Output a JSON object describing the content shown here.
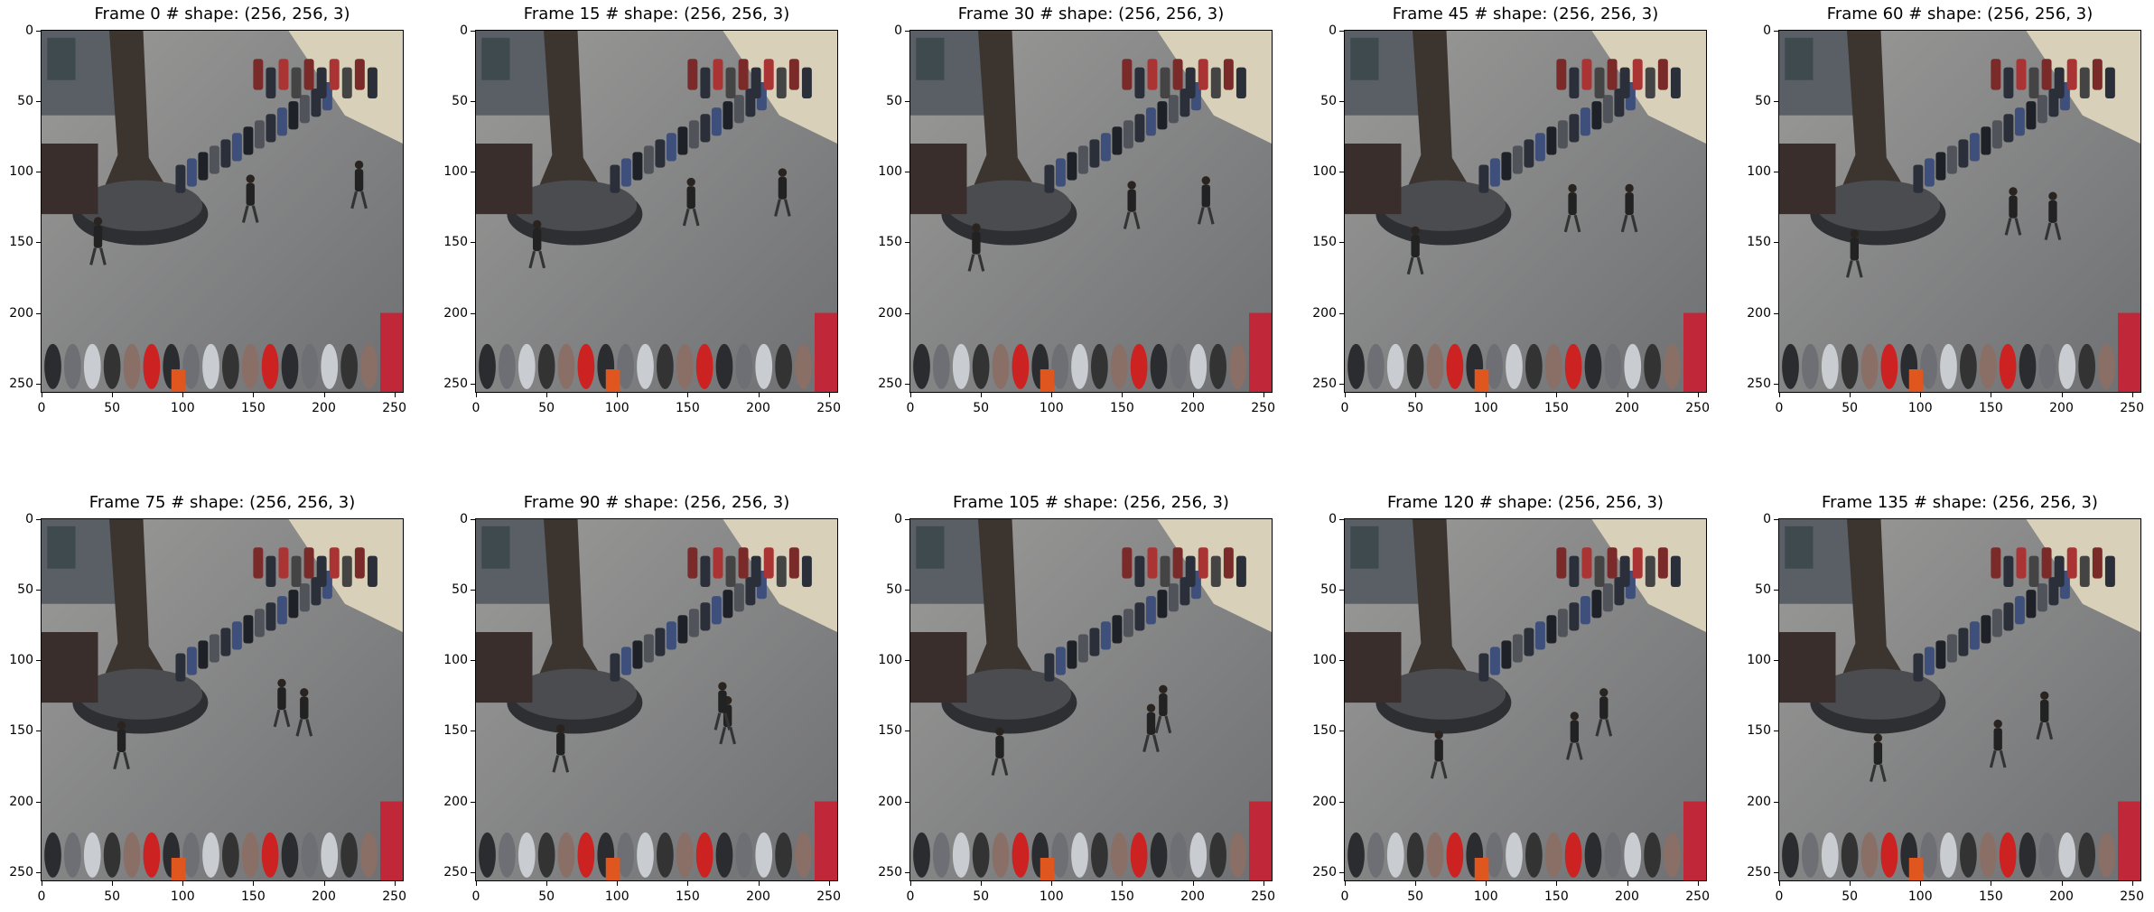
{
  "figure": {
    "panels": [
      {
        "title": "Frame 0 # shape: (256, 256, 3)",
        "frame": 0
      },
      {
        "title": "Frame 15 # shape: (256, 256, 3)",
        "frame": 15
      },
      {
        "title": "Frame 30 # shape: (256, 256, 3)",
        "frame": 30
      },
      {
        "title": "Frame 45 # shape: (256, 256, 3)",
        "frame": 45
      },
      {
        "title": "Frame 60 # shape: (256, 256, 3)",
        "frame": 60
      },
      {
        "title": "Frame 75 # shape: (256, 256, 3)",
        "frame": 75
      },
      {
        "title": "Frame 90 # shape: (256, 256, 3)",
        "frame": 90
      },
      {
        "title": "Frame 105 # shape: (256, 256, 3)",
        "frame": 105
      },
      {
        "title": "Frame 120 # shape: (256, 256, 3)",
        "frame": 120
      },
      {
        "title": "Frame 135 # shape: (256, 256, 3)",
        "frame": 135
      }
    ],
    "x_ticks": [
      "0",
      "50",
      "100",
      "150",
      "200",
      "250"
    ],
    "y_ticks": [
      "0",
      "50",
      "100",
      "150",
      "200",
      "250"
    ],
    "axis_range": [
      0,
      256
    ]
  }
}
